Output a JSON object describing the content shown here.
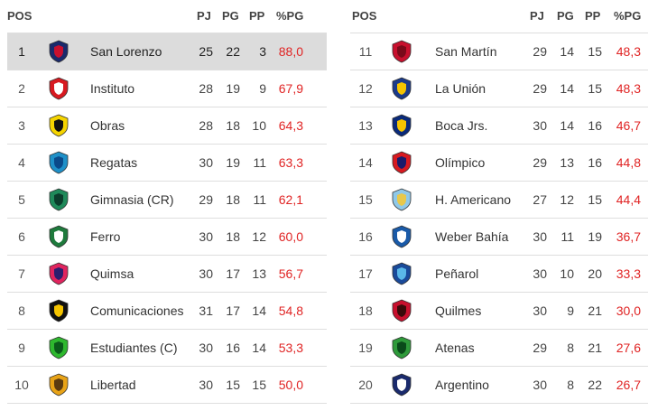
{
  "headers": {
    "pos": "POS",
    "pj": "PJ",
    "pg": "PG",
    "pp": "PP",
    "pct": "%PG"
  },
  "teams": [
    {
      "pos": "1",
      "name": "San Lorenzo",
      "pj": "25",
      "pg": "22",
      "pp": "3",
      "pct": "88,0",
      "logo": "san-lorenzo-logo",
      "colors": [
        "#1a2a6c",
        "#c8102e"
      ]
    },
    {
      "pos": "2",
      "name": "Instituto",
      "pj": "28",
      "pg": "19",
      "pp": "9",
      "pct": "67,9",
      "logo": "instituto-logo",
      "colors": [
        "#d71920",
        "#ffffff"
      ]
    },
    {
      "pos": "3",
      "name": "Obras",
      "pj": "28",
      "pg": "18",
      "pp": "10",
      "pct": "64,3",
      "logo": "obras-logo",
      "colors": [
        "#f5d400",
        "#111111"
      ]
    },
    {
      "pos": "4",
      "name": "Regatas",
      "pj": "30",
      "pg": "19",
      "pp": "11",
      "pct": "63,3",
      "logo": "regatas-logo",
      "colors": [
        "#1e90c8",
        "#0a4a8a"
      ]
    },
    {
      "pos": "5",
      "name": "Gimnasia (CR)",
      "pj": "29",
      "pg": "18",
      "pp": "11",
      "pct": "62,1",
      "logo": "gimnasia-logo",
      "colors": [
        "#1f8a5a",
        "#0b3d2c"
      ]
    },
    {
      "pos": "6",
      "name": "Ferro",
      "pj": "30",
      "pg": "18",
      "pp": "12",
      "pct": "60,0",
      "logo": "ferro-logo",
      "colors": [
        "#1e7a3c",
        "#ffffff"
      ]
    },
    {
      "pos": "7",
      "name": "Quimsa",
      "pj": "30",
      "pg": "17",
      "pp": "13",
      "pct": "56,7",
      "logo": "quimsa-logo",
      "colors": [
        "#e0245e",
        "#2a1e6e"
      ]
    },
    {
      "pos": "8",
      "name": "Comunicaciones",
      "pj": "31",
      "pg": "17",
      "pp": "14",
      "pct": "54,8",
      "logo": "comunicaciones-logo",
      "colors": [
        "#111111",
        "#f5c400"
      ]
    },
    {
      "pos": "9",
      "name": "Estudiantes (C)",
      "pj": "30",
      "pg": "16",
      "pp": "14",
      "pct": "53,3",
      "logo": "estudiantes-logo",
      "colors": [
        "#2eb82e",
        "#0a5a1a"
      ]
    },
    {
      "pos": "10",
      "name": "Libertad",
      "pj": "30",
      "pg": "15",
      "pp": "15",
      "pct": "50,0",
      "logo": "libertad-logo",
      "colors": [
        "#e8a317",
        "#5a3a10"
      ]
    },
    {
      "pos": "11",
      "name": "San Martín",
      "pj": "29",
      "pg": "14",
      "pp": "15",
      "pct": "48,3",
      "logo": "san-martin-logo",
      "colors": [
        "#c8102e",
        "#7a0a1a"
      ]
    },
    {
      "pos": "12",
      "name": "La Unión",
      "pj": "29",
      "pg": "14",
      "pp": "15",
      "pct": "48,3",
      "logo": "la-union-logo",
      "colors": [
        "#1a3a8a",
        "#f5c400"
      ]
    },
    {
      "pos": "13",
      "name": "Boca Jrs.",
      "pj": "30",
      "pg": "14",
      "pp": "16",
      "pct": "46,7",
      "logo": "boca-logo",
      "colors": [
        "#0a2a7a",
        "#f5c400"
      ]
    },
    {
      "pos": "14",
      "name": "Olímpico",
      "pj": "29",
      "pg": "13",
      "pp": "16",
      "pct": "44,8",
      "logo": "olimpico-logo",
      "colors": [
        "#d71920",
        "#1a1a6a"
      ]
    },
    {
      "pos": "15",
      "name": "H. Americano",
      "pj": "27",
      "pg": "12",
      "pp": "15",
      "pct": "44,4",
      "logo": "h-americano-logo",
      "colors": [
        "#8fc8e8",
        "#e8c84a"
      ]
    },
    {
      "pos": "16",
      "name": "Weber Bahía",
      "pj": "30",
      "pg": "11",
      "pp": "19",
      "pct": "36,7",
      "logo": "weber-bahia-logo",
      "colors": [
        "#1a5aa8",
        "#ffffff"
      ]
    },
    {
      "pos": "17",
      "name": "Peñarol",
      "pj": "30",
      "pg": "10",
      "pp": "20",
      "pct": "33,3",
      "logo": "penarol-logo",
      "colors": [
        "#1a4a9a",
        "#5ab8e8"
      ]
    },
    {
      "pos": "18",
      "name": "Quilmes",
      "pj": "30",
      "pg": "9",
      "pp": "21",
      "pct": "30,0",
      "logo": "quilmes-logo",
      "colors": [
        "#c8102e",
        "#3a0a0a"
      ]
    },
    {
      "pos": "19",
      "name": "Atenas",
      "pj": "29",
      "pg": "8",
      "pp": "21",
      "pct": "27,6",
      "logo": "atenas-logo",
      "colors": [
        "#2e9a3a",
        "#0a4a1a"
      ]
    },
    {
      "pos": "20",
      "name": "Argentino",
      "pj": "30",
      "pg": "8",
      "pp": "22",
      "pct": "26,7",
      "logo": "argentino-logo",
      "colors": [
        "#1a2a6c",
        "#ffffff"
      ]
    }
  ],
  "highlight_color": "#dcdcdc",
  "pct_color": "#e02424"
}
